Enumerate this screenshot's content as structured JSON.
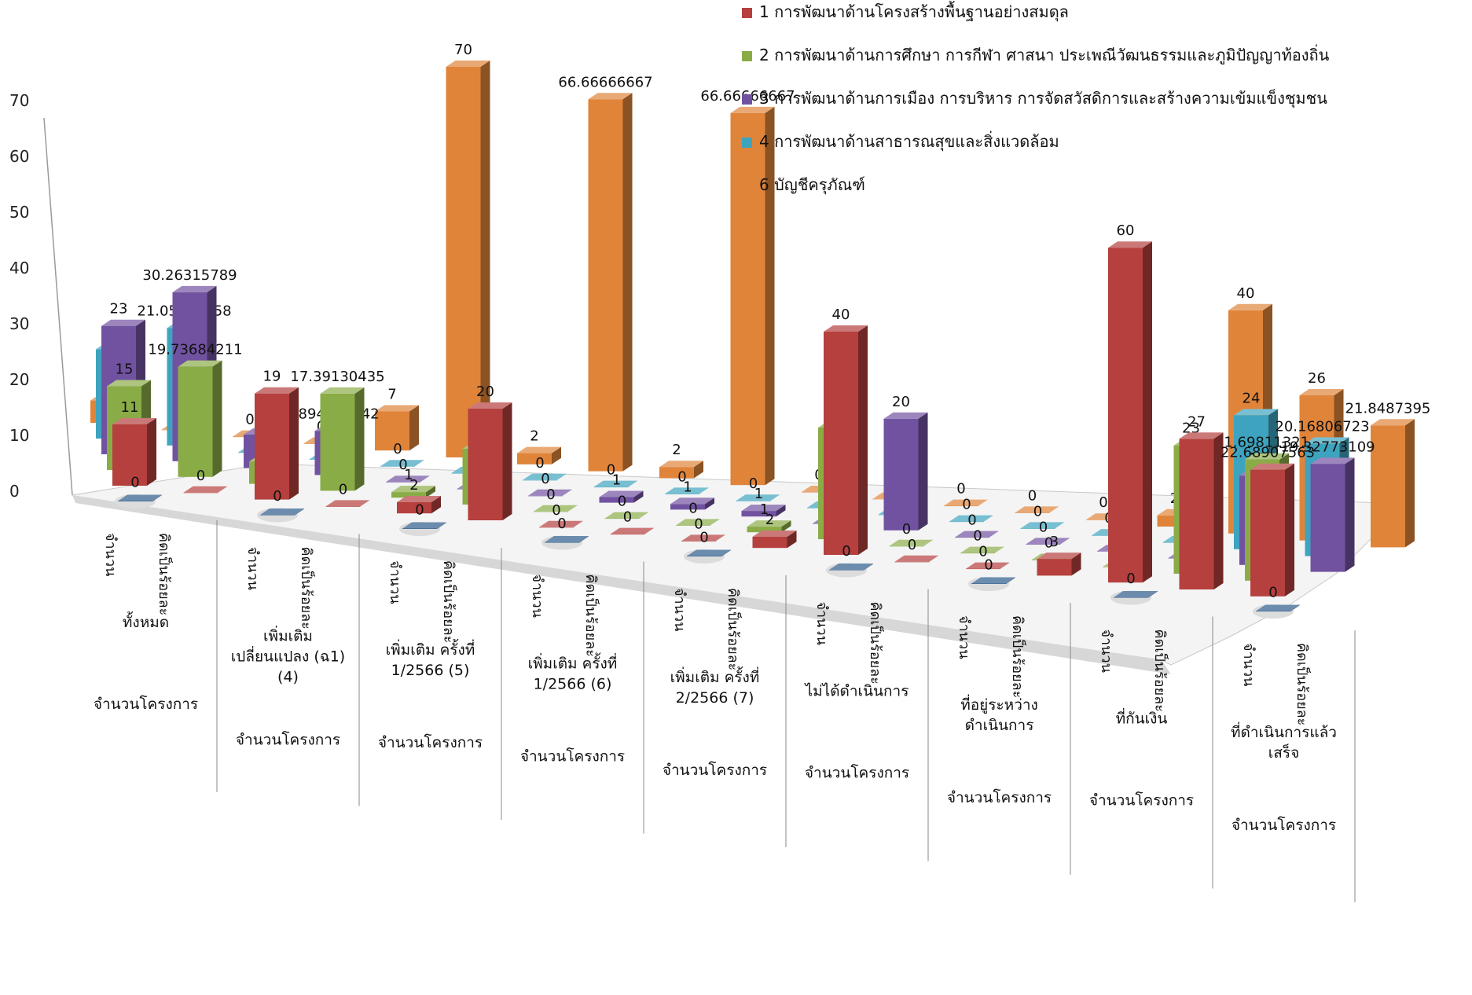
{
  "chart_data": {
    "type": "bar",
    "subtype": "3d-column",
    "y_ticks": [
      "0",
      "10",
      "20",
      "30",
      "40",
      "50",
      "60",
      "70"
    ],
    "ylim": [
      0,
      70
    ],
    "legend_position": "top-right",
    "legend": [
      {
        "name": "1 การพัฒนาด้านโครงสร้างพื้นฐานอย่างสมดุล",
        "color": "#b5403e"
      },
      {
        "name": "2 การพัฒนาด้านการศึกษา การกีฬา ศาสนา ประเพณีวัฒนธรรมและภูมิปัญญาท้องถิ่น",
        "color": "#8aac46"
      },
      {
        "name": "3 การพัฒนาด้านการเมือง การบริหาร การจัดสวัสดิการและสร้างความเข้มแข็งชุมชน",
        "color": "#7152a0"
      },
      {
        "name": "4 การพัฒนาด้านสาธารณสุขและสิ่งแวดล้อม",
        "color": "#3ea3bf"
      },
      {
        "name": "6 บัญชีครุภัณฑ์",
        "color": "#e0843a"
      }
    ],
    "groups": [
      {
        "label": [
          "ทั้งหมด"
        ],
        "bottom": "จำนวนโครงการ"
      },
      {
        "label": [
          "เพิ่มเติม",
          "เปลี่ยนแปลง (ฉ1)",
          "(4)"
        ],
        "bottom": "จำนวนโครงการ"
      },
      {
        "label": [
          "เพิ่มเติม  ครั้งที่",
          "1/2566 (5)"
        ],
        "bottom": "จำนวนโครงการ"
      },
      {
        "label": [
          "เพิ่มเติม  ครั้งที่",
          "1/2566   (6)"
        ],
        "bottom": "จำนวนโครงการ"
      },
      {
        "label": [
          "เพิ่มเติม  ครั้งที่",
          "2/2566 (7)"
        ],
        "bottom": "จำนวนโครงการ"
      },
      {
        "label": [
          "ไม่ได้ดำเนินการ"
        ],
        "bottom": "จำนวนโครงการ"
      },
      {
        "label": [
          "ที่อยู่ระหว่าง",
          "ดำเนินการ"
        ],
        "bottom": "จำนวนโครงการ"
      },
      {
        "label": [
          "ที่กันเงิน"
        ],
        "bottom": "จำนวนโครงการ"
      },
      {
        "label": [
          "ที่ดำเนินการแล้ว",
          "เสร็จ"
        ],
        "bottom": "จำนวนโครงการ"
      }
    ],
    "subcategories": [
      "จำนวน",
      "คิดเป็นร้อยละ"
    ],
    "rows": [
      {
        "series": "6 บัญชีครุภัณฑ์",
        "values": [
          {
            "v": 4,
            "label": "4"
          },
          {
            "v": 0,
            "label": "0"
          },
          {
            "v": 0,
            "label": "0"
          },
          {
            "v": 0,
            "label": "0"
          },
          {
            "v": 7,
            "label": "7"
          },
          {
            "v": 70,
            "label": "70"
          },
          {
            "v": 2,
            "label": "2"
          },
          {
            "v": 66.66666667,
            "label": "66.66666667"
          },
          {
            "v": 2,
            "label": "2"
          },
          {
            "v": 66.66666667,
            "label": "66.66666667"
          },
          {
            "v": 0,
            "label": "0"
          },
          {
            "v": 0,
            "label": "0"
          },
          {
            "v": 0,
            "label": "0"
          },
          {
            "v": 0,
            "label": "0"
          },
          {
            "v": 0,
            "label": "0"
          },
          {
            "v": 2,
            "label": "2"
          },
          {
            "v": 40,
            "label": "40"
          },
          {
            "v": 26,
            "label": "26"
          },
          {
            "v": 21.8487395,
            "label": "21.8487395"
          }
        ]
      },
      {
        "series": "4 การพัฒนาด้านสาธารณสุขและสิ่งแวดล้อม",
        "values": [
          {
            "v": 16,
            "label": "16"
          },
          {
            "v": 21.05263158,
            "label": "21.05263158"
          },
          {
            "v": 0,
            "label": "0"
          },
          {
            "v": 0,
            "label": "0"
          },
          {
            "v": 0,
            "label": "0"
          },
          {
            "v": 0,
            "label": "0"
          },
          {
            "v": 0,
            "label": "0"
          },
          {
            "v": 0,
            "label": "0"
          },
          {
            "v": 0,
            "label": "0"
          },
          {
            "v": 0,
            "label": "0"
          },
          {
            "v": 0,
            "label": "0"
          },
          {
            "v": 0,
            "label": "0"
          },
          {
            "v": 0,
            "label": "0"
          },
          {
            "v": 0,
            "label": "0"
          },
          {
            "v": 0,
            "label": "0"
          },
          {
            "v": 0,
            "label": "0"
          },
          {
            "v": 24,
            "label": "24"
          },
          {
            "v": 20.16806723,
            "label": "20.16806723"
          }
        ]
      },
      {
        "series": "3 การพัฒนาด้านการเมือง การบริหาร การจัดสวัสดิการและสร้างความเข้มแข็งชุมชน",
        "values": [
          {
            "v": 23,
            "label": "23"
          },
          {
            "v": 30.26315789,
            "label": "30.26315789"
          },
          {
            "v": 6,
            "label": "6"
          },
          {
            "v": 7.894736842,
            "label": "7.894736842"
          },
          {
            "v": 0,
            "label": "0"
          },
          {
            "v": 0,
            "label": "0"
          },
          {
            "v": 0,
            "label": "0"
          },
          {
            "v": 1,
            "label": "1"
          },
          {
            "v": 1,
            "label": "1"
          },
          {
            "v": 1,
            "label": "1"
          },
          {
            "v": 0,
            "label": "0"
          },
          {
            "v": 20,
            "label": "20"
          },
          {
            "v": 0,
            "label": "0"
          },
          {
            "v": 0,
            "label": "0"
          },
          {
            "v": 0,
            "label": "0"
          },
          {
            "v": 0,
            "label": "0"
          },
          {
            "v": 16,
            "label": "16"
          },
          {
            "v": 19.3277311,
            "label": "19.32773109"
          }
        ]
      },
      {
        "series": "2 การพัฒนาด้านการศึกษา การกีฬา ศาสนา ประเพณีวัฒนธรรมและภูมิปัญญาท้องถิ่น",
        "values": [
          {
            "v": 15,
            "label": "15"
          },
          {
            "v": 19.73684211,
            "label": "19.73684211"
          },
          {
            "v": 4,
            "label": "4"
          },
          {
            "v": 17.39130435,
            "label": "17.39130435"
          },
          {
            "v": 1,
            "label": "1"
          },
          {
            "v": 10,
            "label": "10"
          },
          {
            "v": 0,
            "label": "0"
          },
          {
            "v": 0,
            "label": "0"
          },
          {
            "v": 0,
            "label": "0"
          },
          {
            "v": 1,
            "label": "1"
          },
          {
            "v": 20,
            "label": "20"
          },
          {
            "v": 0,
            "label": "0"
          },
          {
            "v": 0,
            "label": "0"
          },
          {
            "v": 0,
            "label": "0"
          },
          {
            "v": 0,
            "label": "0"
          },
          {
            "v": 23,
            "label": "23"
          },
          {
            "v": 21.69811321,
            "label": "21.69811321"
          }
        ]
      },
      {
        "series": "1 การพัฒนาด้านโครงสร้างพื้นฐานอย่างสมดุล",
        "values": [
          {
            "v": 11,
            "label": "11"
          },
          {
            "v": 0,
            "label": "0"
          },
          {
            "v": 19,
            "label": "19"
          },
          {
            "v": 0,
            "label": "0"
          },
          {
            "v": 2,
            "label": "2"
          },
          {
            "v": 20,
            "label": "20"
          },
          {
            "v": 0,
            "label": "0"
          },
          {
            "v": 0,
            "label": "0"
          },
          {
            "v": 0,
            "label": "0"
          },
          {
            "v": 2,
            "label": "2"
          },
          {
            "v": 40,
            "label": "40"
          },
          {
            "v": 0,
            "label": "0"
          },
          {
            "v": 0,
            "label": "0"
          },
          {
            "v": 3,
            "label": "3"
          },
          {
            "v": 60,
            "label": "60"
          },
          {
            "v": 27,
            "label": "27"
          },
          {
            "v": 22.68907563,
            "label": "22.68907563"
          }
        ]
      },
      {
        "series": "front",
        "values": [
          {
            "v": 0,
            "label": "0"
          },
          {
            "v": 0,
            "label": "0"
          },
          {
            "v": 0,
            "label": "0"
          },
          {
            "v": 0,
            "label": "0"
          },
          {
            "v": 0,
            "label": "0"
          },
          {
            "v": 0,
            "label": "0"
          },
          {
            "v": 0,
            "label": "0"
          },
          {
            "v": 0,
            "label": "0"
          },
          {
            "v": 0,
            "label": "0"
          }
        ]
      }
    ]
  }
}
